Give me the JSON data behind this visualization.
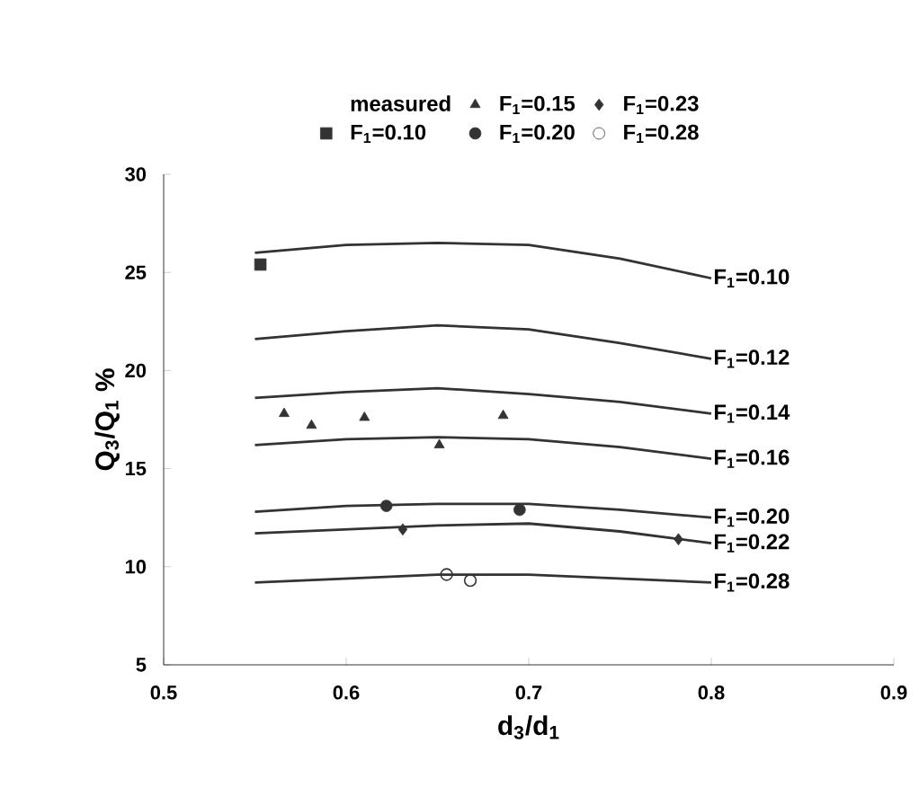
{
  "chart_data": {
    "type": "line",
    "xlabel": "d$_{3}$/d$_{1}$",
    "ylabel": "Q$_{3}$/Q$_{1}$ %",
    "legend_title": "measured",
    "legend": "top",
    "x": [
      0.55,
      0.6,
      0.65,
      0.7,
      0.75,
      0.8
    ],
    "xlim": [
      0.5,
      0.9
    ],
    "xticks": [
      0.5,
      0.6,
      0.7,
      0.8,
      0.9
    ],
    "ylim": [
      5,
      30
    ],
    "yticks": [
      5,
      10,
      15,
      20,
      25,
      30
    ],
    "series": [
      {
        "type": "scatter",
        "name": "F$_{1}$=0.15",
        "marker": "triangle",
        "color": "#333333",
        "x": [
          0.566,
          0.581,
          0.61,
          0.651,
          0.686
        ],
        "values": [
          17.8,
          17.2,
          17.6,
          16.2,
          17.7
        ]
      },
      {
        "type": "scatter",
        "name": "F$_{1}$=0.23",
        "marker": "diamond",
        "color": "#333333",
        "x": [
          0.631,
          0.782
        ],
        "values": [
          11.9,
          11.4
        ]
      },
      {
        "type": "scatter",
        "name": "F$_{1}$=0.10",
        "marker": "square",
        "color": "#333333",
        "x": [
          0.553
        ],
        "values": [
          25.4
        ]
      },
      {
        "type": "scatter",
        "name": "F$_{1}$=0.20",
        "marker": "circle",
        "color": "#333333",
        "x": [
          0.622,
          0.695
        ],
        "values": [
          13.1,
          12.9
        ]
      },
      {
        "type": "scatter",
        "name": "F$_{1}$=0.28",
        "marker": "open circle",
        "color": "#333333",
        "x": [
          0.655,
          0.668
        ],
        "values": [
          9.6,
          9.3
        ]
      },
      {
        "name": "F$_{1}$=0.10",
        "color": "#333333",
        "values": [
          26.0,
          26.4,
          26.5,
          26.4,
          25.7,
          24.7
        ]
      },
      {
        "name": "F$_{1}$=0.12",
        "color": "#333333",
        "values": [
          21.6,
          22.0,
          22.3,
          22.1,
          21.4,
          20.6
        ]
      },
      {
        "name": "F$_{1}$=0.14",
        "color": "#333333",
        "values": [
          18.6,
          18.9,
          19.1,
          18.8,
          18.4,
          17.8
        ]
      },
      {
        "name": "F$_{1}$=0.16",
        "color": "#333333",
        "values": [
          16.2,
          16.5,
          16.6,
          16.5,
          16.1,
          15.5
        ]
      },
      {
        "name": "F$_{1}$=0.20",
        "color": "#333333",
        "values": [
          12.8,
          13.1,
          13.2,
          13.2,
          12.9,
          12.5
        ]
      },
      {
        "name": "F$_{1}$=0.22",
        "color": "#333333",
        "values": [
          11.7,
          11.9,
          12.1,
          12.2,
          11.8,
          11.2
        ]
      },
      {
        "name": "F$_{1}$=0.28",
        "color": "#333333",
        "values": [
          9.2,
          9.4,
          9.6,
          9.6,
          9.4,
          9.2
        ]
      }
    ]
  }
}
